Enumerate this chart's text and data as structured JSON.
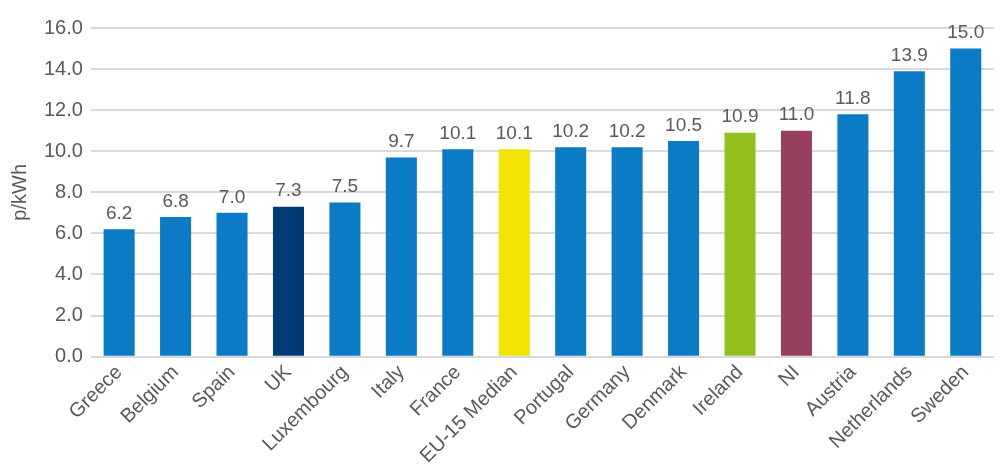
{
  "chart_data": {
    "type": "bar",
    "ylabel": "p/kWh",
    "categories": [
      "Greece",
      "Belgium",
      "Spain",
      "UK",
      "Luxembourg",
      "Italy",
      "France",
      "EU-15 Median",
      "Portugal",
      "Germany",
      "Denmark",
      "Ireland",
      "NI",
      "Austria",
      "Netherlands",
      "Sweden"
    ],
    "values": [
      6.2,
      6.8,
      7.0,
      7.3,
      7.5,
      9.7,
      10.1,
      10.1,
      10.2,
      10.2,
      10.5,
      10.9,
      11.0,
      11.8,
      13.9,
      15.0
    ],
    "value_labels": [
      "6.2",
      "6.8",
      "7.0",
      "7.3",
      "7.5",
      "9.7",
      "10.1",
      "10.1",
      "10.2",
      "10.2",
      "10.5",
      "10.9",
      "11.0",
      "11.8",
      "13.9",
      "15.0"
    ],
    "colors": [
      "#0a7bc4",
      "#0a7bc4",
      "#0a7bc4",
      "#003b78",
      "#0a7bc4",
      "#0a7bc4",
      "#0a7bc4",
      "#f0e400",
      "#0a7bc4",
      "#0a7bc4",
      "#0a7bc4",
      "#93c01f",
      "#973f5f",
      "#0a7bc4",
      "#0a7bc4",
      "#0a7bc4"
    ],
    "ylim": [
      0,
      16
    ],
    "yticks": [
      {
        "value": 0,
        "label": "0.0"
      },
      {
        "value": 2,
        "label": "2.0"
      },
      {
        "value": 4,
        "label": "4.0"
      },
      {
        "value": 6,
        "label": "6.0"
      },
      {
        "value": 8,
        "label": "8.0"
      },
      {
        "value": 10,
        "label": "10.0"
      },
      {
        "value": 12,
        "label": "12.0"
      },
      {
        "value": 14,
        "label": "14.0"
      },
      {
        "value": 16,
        "label": "16.0"
      }
    ],
    "grid": "y",
    "legend": false
  }
}
